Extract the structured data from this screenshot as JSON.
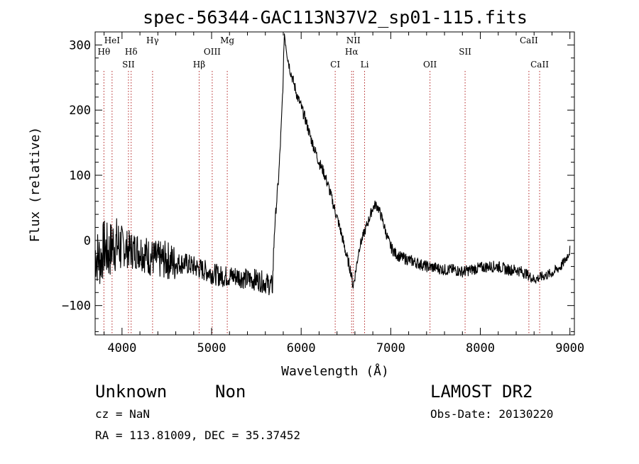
{
  "chart_data": {
    "type": "line",
    "title": "spec-56344-GAC113N37V2_sp01-115.fits",
    "xlabel": "Wavelength (Å)",
    "ylabel": "Flux (relative)",
    "xlim": [
      3700,
      9050
    ],
    "ylim": [
      -145,
      320
    ],
    "xticks": [
      4000,
      5000,
      6000,
      7000,
      8000,
      9000
    ],
    "yticks": [
      -100,
      0,
      100,
      200,
      300
    ],
    "grid": false,
    "line_color": "#000000",
    "marker_color": "#b22222",
    "series": [
      {
        "noise_seed": 7,
        "points": [
          [
            3700,
            -20
          ],
          [
            3760,
            -30
          ],
          [
            3800,
            -10
          ],
          [
            3850,
            -20
          ],
          [
            3900,
            -5
          ],
          [
            4000,
            -10
          ],
          [
            4100,
            -15
          ],
          [
            4200,
            -15
          ],
          [
            4300,
            -25
          ],
          [
            4400,
            -30
          ],
          [
            4500,
            -30
          ],
          [
            4600,
            -35
          ],
          [
            4700,
            -35
          ],
          [
            4800,
            -40
          ],
          [
            4900,
            -45
          ],
          [
            5000,
            -50
          ],
          [
            5100,
            -55
          ],
          [
            5200,
            -55
          ],
          [
            5300,
            -55
          ],
          [
            5400,
            -60
          ],
          [
            5500,
            -60
          ],
          [
            5600,
            -65
          ],
          [
            5680,
            -70
          ],
          [
            5690,
            -30
          ],
          [
            5700,
            10
          ],
          [
            5720,
            50
          ],
          [
            5750,
            100
          ],
          [
            5780,
            180
          ],
          [
            5800,
            250
          ],
          [
            5810,
            320
          ],
          [
            5820,
            310
          ],
          [
            5850,
            280
          ],
          [
            5880,
            260
          ],
          [
            5920,
            240
          ],
          [
            5960,
            220
          ],
          [
            6000,
            205
          ],
          [
            6050,
            185
          ],
          [
            6100,
            160
          ],
          [
            6150,
            140
          ],
          [
            6200,
            120
          ],
          [
            6250,
            105
          ],
          [
            6300,
            85
          ],
          [
            6350,
            60
          ],
          [
            6400,
            35
          ],
          [
            6450,
            10
          ],
          [
            6500,
            -20
          ],
          [
            6550,
            -45
          ],
          [
            6580,
            -70
          ],
          [
            6600,
            -55
          ],
          [
            6650,
            -10
          ],
          [
            6700,
            10
          ],
          [
            6750,
            30
          ],
          [
            6800,
            50
          ],
          [
            6830,
            55
          ],
          [
            6860,
            50
          ],
          [
            6900,
            35
          ],
          [
            6950,
            10
          ],
          [
            7000,
            -10
          ],
          [
            7050,
            -20
          ],
          [
            7100,
            -25
          ],
          [
            7200,
            -30
          ],
          [
            7300,
            -35
          ],
          [
            7400,
            -40
          ],
          [
            7500,
            -42
          ],
          [
            7600,
            -45
          ],
          [
            7700,
            -45
          ],
          [
            7800,
            -48
          ],
          [
            7900,
            -45
          ],
          [
            8000,
            -42
          ],
          [
            8100,
            -40
          ],
          [
            8200,
            -40
          ],
          [
            8300,
            -45
          ],
          [
            8400,
            -45
          ],
          [
            8500,
            -50
          ],
          [
            8600,
            -60
          ],
          [
            8700,
            -55
          ],
          [
            8800,
            -50
          ],
          [
            8900,
            -40
          ],
          [
            8950,
            -30
          ],
          [
            9000,
            -15
          ]
        ]
      }
    ],
    "lines": [
      {
        "label": "Hθ",
        "wavelength": 3798,
        "row": 2
      },
      {
        "label": "HeI",
        "wavelength": 3889,
        "row": 1
      },
      {
        "label": "SII",
        "wavelength": 4072,
        "row": 3
      },
      {
        "label": "Hδ",
        "wavelength": 4102,
        "row": 2
      },
      {
        "label": "Hγ",
        "wavelength": 4341,
        "row": 1
      },
      {
        "label": "Hβ",
        "wavelength": 4861,
        "row": 3
      },
      {
        "label": "OIII",
        "wavelength": 5007,
        "row": 2
      },
      {
        "label": "Mg",
        "wavelength": 5175,
        "row": 1
      },
      {
        "label": "CI",
        "wavelength": 6380,
        "row": 3
      },
      {
        "label": "NII",
        "wavelength": 6583,
        "row": 1
      },
      {
        "label": "Hα",
        "wavelength": 6563,
        "row": 2
      },
      {
        "label": "Li",
        "wavelength": 6708,
        "row": 3
      },
      {
        "label": "OII",
        "wavelength": 7438,
        "row": 3
      },
      {
        "label": "SII",
        "wavelength": 7830,
        "row": 2
      },
      {
        "label": "CaII",
        "wavelength": 8542,
        "row": 1
      },
      {
        "label": "CaII",
        "wavelength": 8662,
        "row": 3
      }
    ]
  },
  "info": {
    "class": "Unknown",
    "subclass": "Non",
    "survey": "LAMOST DR2",
    "cz": "cz = NaN",
    "obs_date": "Obs-Date: 20130220",
    "coords": "RA = 113.81009, DEC =  35.37452"
  }
}
